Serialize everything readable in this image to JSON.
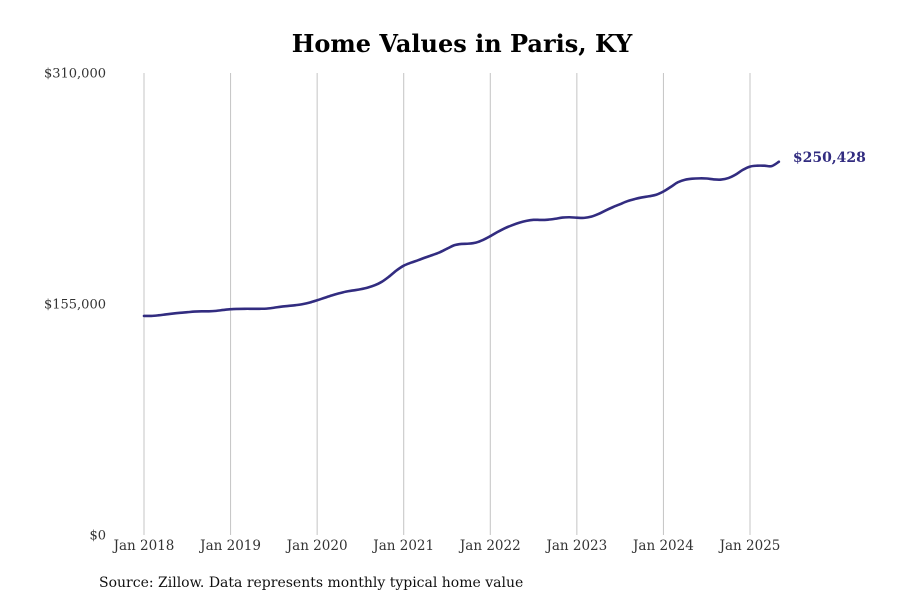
{
  "chart_data": {
    "type": "line",
    "title": "Home Values in Paris, KY",
    "source": "Source: Zillow. Data represents monthly typical home value",
    "ylim": [
      0,
      310000
    ],
    "y_ticks": [
      {
        "value": 0,
        "label": "$0"
      },
      {
        "value": 155000,
        "label": "$155,000"
      },
      {
        "value": 310000,
        "label": "$310,000"
      }
    ],
    "xlim": [
      "2018-01",
      "2025-06"
    ],
    "x_ticks": [
      {
        "date": "2018-01",
        "label": "Jan 2018"
      },
      {
        "date": "2019-01",
        "label": "Jan 2019"
      },
      {
        "date": "2020-01",
        "label": "Jan 2020"
      },
      {
        "date": "2021-01",
        "label": "Jan 2021"
      },
      {
        "date": "2022-01",
        "label": "Jan 2022"
      },
      {
        "date": "2023-01",
        "label": "Jan 2023"
      },
      {
        "date": "2024-01",
        "label": "Jan 2024"
      },
      {
        "date": "2025-01",
        "label": "Jan 2025"
      }
    ],
    "grid": "vertical",
    "line_color": "#322c80",
    "end_label": "$250,428",
    "series": [
      {
        "x": [
          "2018-01",
          "2018-02",
          "2018-03",
          "2018-04",
          "2018-05",
          "2018-06",
          "2018-07",
          "2018-08",
          "2018-09",
          "2018-10",
          "2018-11",
          "2018-12",
          "2019-01",
          "2019-02",
          "2019-03",
          "2019-04",
          "2019-05",
          "2019-06",
          "2019-07",
          "2019-08",
          "2019-09",
          "2019-10",
          "2019-11",
          "2019-12",
          "2020-01",
          "2020-02",
          "2020-03",
          "2020-04",
          "2020-05",
          "2020-06",
          "2020-07",
          "2020-08",
          "2020-09",
          "2020-10",
          "2020-11",
          "2020-12",
          "2021-01",
          "2021-02",
          "2021-03",
          "2021-04",
          "2021-05",
          "2021-06",
          "2021-07",
          "2021-08",
          "2021-09",
          "2021-10",
          "2021-11",
          "2021-12",
          "2022-01",
          "2022-02",
          "2022-03",
          "2022-04",
          "2022-05",
          "2022-06",
          "2022-07",
          "2022-08",
          "2022-09",
          "2022-10",
          "2022-11",
          "2022-12",
          "2023-01",
          "2023-02",
          "2023-03",
          "2023-04",
          "2023-05",
          "2023-06",
          "2023-07",
          "2023-08",
          "2023-09",
          "2023-10",
          "2023-11",
          "2023-12",
          "2024-01",
          "2024-02",
          "2024-03",
          "2024-04",
          "2024-05",
          "2024-06",
          "2024-07",
          "2024-08",
          "2024-09",
          "2024-10",
          "2024-11",
          "2024-12",
          "2025-01",
          "2025-02",
          "2025-03",
          "2025-04",
          "2025-05"
        ],
        "values": [
          147000,
          147000,
          147400,
          148000,
          148600,
          149100,
          149500,
          149900,
          150100,
          150100,
          150400,
          151000,
          151500,
          151700,
          151800,
          151800,
          151800,
          151900,
          152500,
          153200,
          153700,
          154200,
          154900,
          156000,
          157500,
          159100,
          160700,
          162100,
          163300,
          164100,
          164900,
          166000,
          167600,
          170000,
          173500,
          177500,
          180700,
          182700,
          184400,
          186200,
          187900,
          189700,
          192100,
          194400,
          195300,
          195500,
          196200,
          198000,
          200500,
          203300,
          205800,
          207800,
          209500,
          210800,
          211500,
          211400,
          211600,
          212200,
          213000,
          213200,
          212900,
          212800,
          213600,
          215400,
          217800,
          220000,
          222000,
          224000,
          225400,
          226500,
          227300,
          228300,
          230500,
          233500,
          236700,
          238400,
          239100,
          239300,
          239200,
          238600,
          238500,
          239500,
          241800,
          245000,
          247200,
          247800,
          247800,
          247500,
          250428
        ]
      }
    ]
  }
}
